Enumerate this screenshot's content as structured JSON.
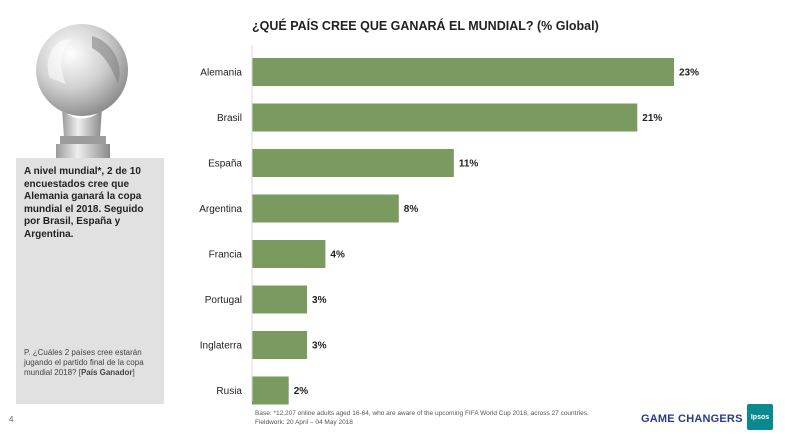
{
  "page": {
    "summary": "A nivel mundial*, 2 de 10 encuestados cree que Alemania ganará la copa mundial el 2018. Seguido por Brasil, España y Argentina.",
    "question_text": "P. ¿Cuáles 2 países cree estarán jugando el partido final de la copa mundial 2018? [",
    "question_bold": "País Ganador",
    "question_end": "]",
    "page_number": "4",
    "footnote": "Base: *12,207 online adults aged 16-64, who are aware of the upcoming FIFA World Cup 2018, across 27 countries. Fieldwork: 20 April – 04 May 2018",
    "brand": "GAME CHANGERS",
    "logo_text": "Ipsos",
    "logo_color": "#0a8a8f"
  },
  "chart_data": {
    "type": "bar",
    "orientation": "horizontal",
    "title": "¿QUÉ PAÍS CREE QUE GANARÁ EL MUNDIAL? (% Global)",
    "categories": [
      "Alemania",
      "Brasil",
      "España",
      "Argentina",
      "Francia",
      "Portugal",
      "Inglaterra",
      "Rusia"
    ],
    "values": [
      23,
      21,
      11,
      8,
      4,
      3,
      3,
      2
    ],
    "data_labels": [
      "23%",
      "21%",
      "11%",
      "8%",
      "4%",
      "3%",
      "3%",
      "2%"
    ],
    "unit": "%",
    "xlim": [
      0,
      23
    ],
    "bar_color": "#7a9a60",
    "grid": false,
    "legend": "none"
  }
}
